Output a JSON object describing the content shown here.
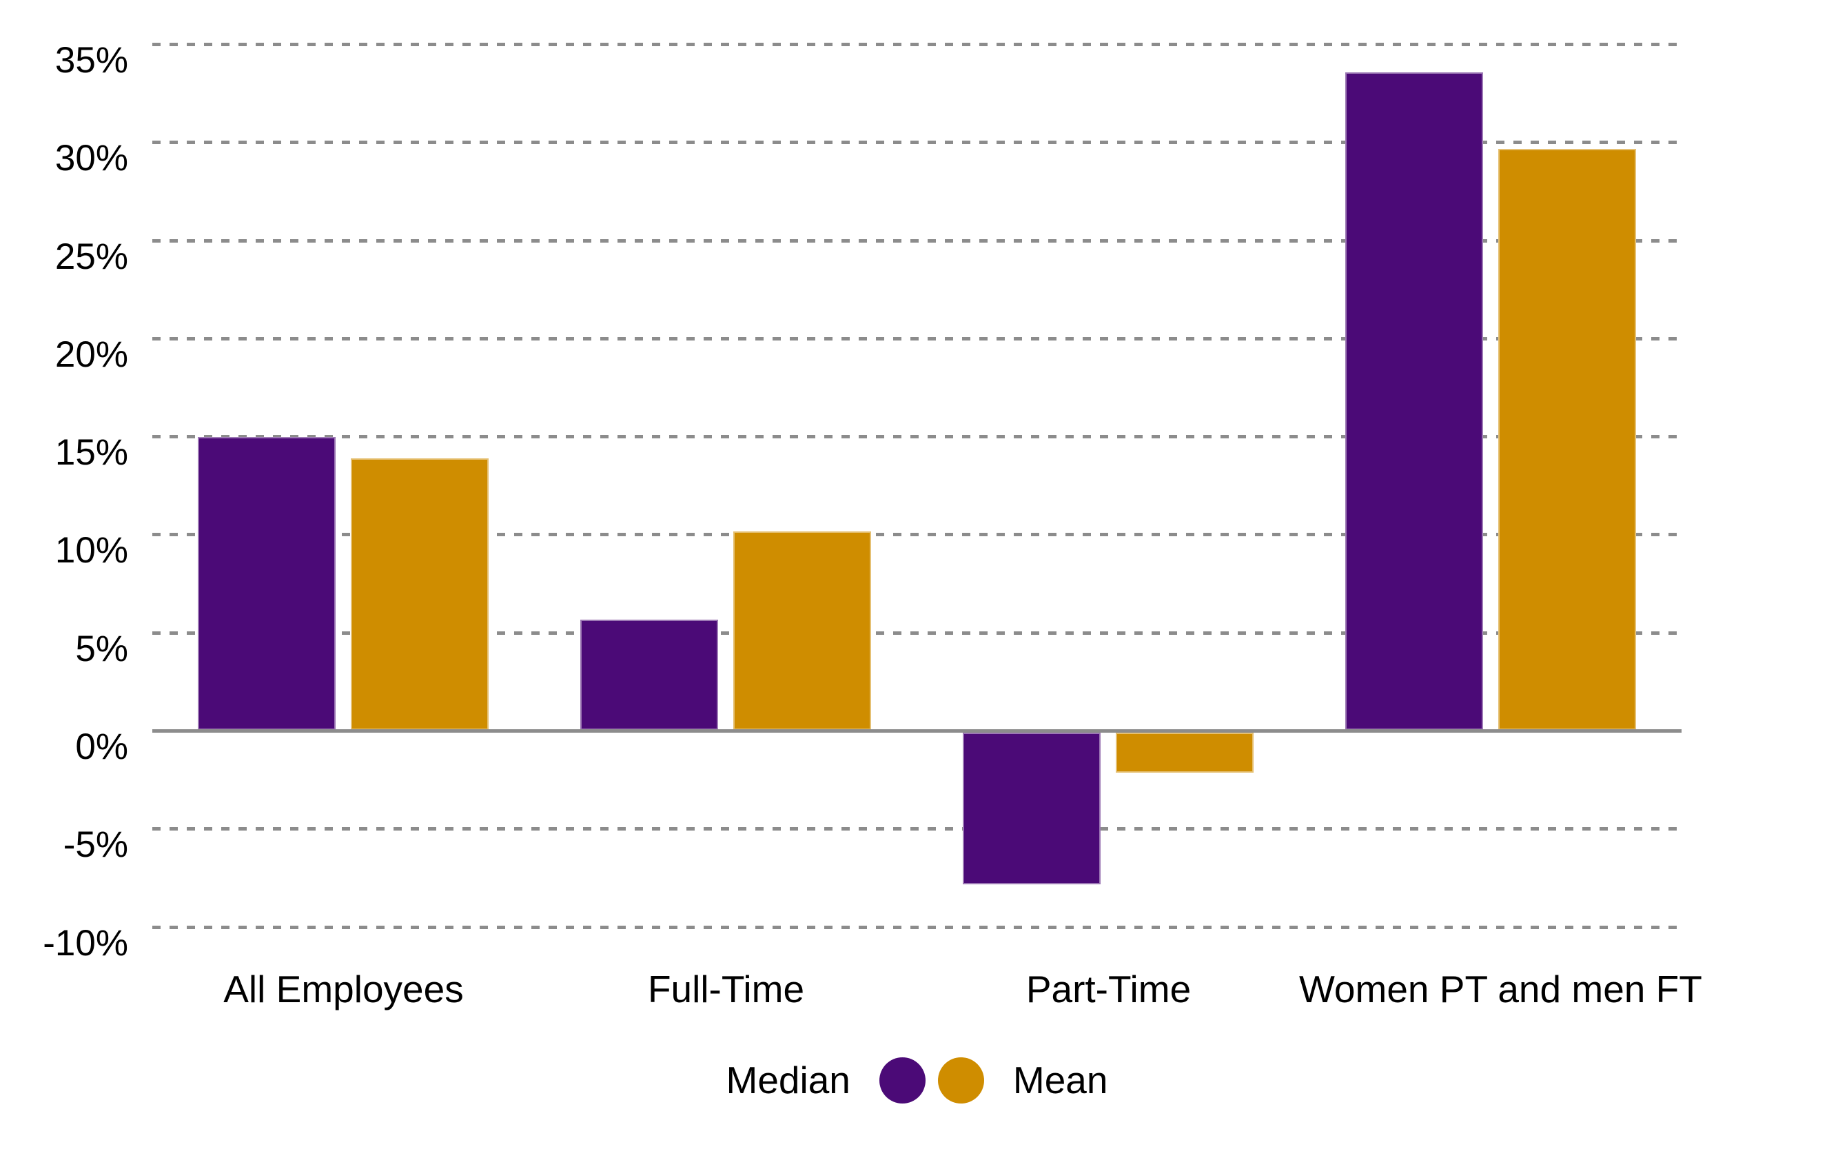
{
  "chart_data": {
    "type": "bar",
    "title": "",
    "xlabel": "",
    "ylabel": "",
    "categories": [
      "All Employees",
      "Full-Time",
      "Part-Time",
      "Women PT and men FT"
    ],
    "series": [
      {
        "name": "Median",
        "color": "#4B0A77",
        "values": [
          15.0,
          5.7,
          -7.8,
          33.6
        ]
      },
      {
        "name": "Mean",
        "color": "#CF8D00",
        "values": [
          13.9,
          10.2,
          -2.1,
          29.7
        ]
      }
    ],
    "yticks": [
      35,
      30,
      25,
      20,
      15,
      10,
      5,
      0,
      -5,
      -10
    ],
    "ytick_suffix": "%",
    "ylim": [
      -10,
      35
    ],
    "grid": "horizontal-dashed",
    "zero_axis": "solid",
    "legend_position": "bottom-center"
  },
  "colors": {
    "grid": "#8C8C8C",
    "axis": "#8C8C8C",
    "background": "#FFFFFF",
    "text": "#000000"
  }
}
